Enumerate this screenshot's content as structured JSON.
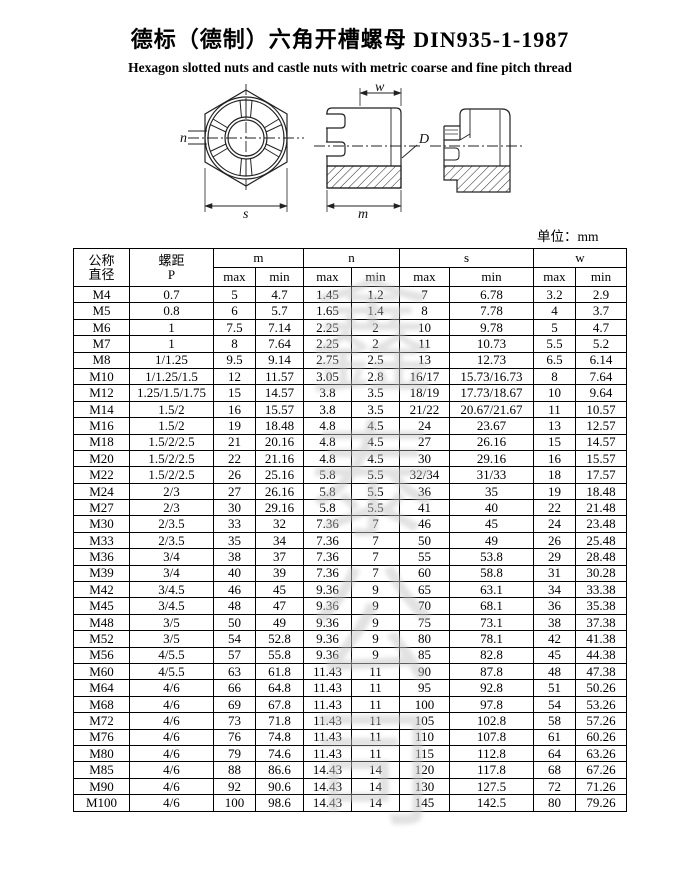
{
  "page": {
    "title": "德标（德制）六角开槽螺母 DIN935-1-1987",
    "subtitle": "Hexagon slotted nuts and castle nuts with metric coarse and fine pitch thread",
    "unit_label": "单位：mm"
  },
  "drawing": {
    "labels": {
      "w": "w",
      "n": "n",
      "D": "D",
      "s": "s",
      "m": "m"
    }
  },
  "watermark": {
    "text": "鑫泰公司"
  },
  "table": {
    "header": {
      "col1_line1": "公称",
      "col1_line2": "直径",
      "col2_line1": "螺距",
      "col2_line2": "P",
      "groups": [
        "m",
        "n",
        "s",
        "w"
      ],
      "max": "max",
      "min": "min"
    },
    "rows": [
      [
        "M4",
        "0.7",
        "5",
        "4.7",
        "1.45",
        "1.2",
        "7",
        "6.78",
        "3.2",
        "2.9"
      ],
      [
        "M5",
        "0.8",
        "6",
        "5.7",
        "1.65",
        "1.4",
        "8",
        "7.78",
        "4",
        "3.7"
      ],
      [
        "M6",
        "1",
        "7.5",
        "7.14",
        "2.25",
        "2",
        "10",
        "9.78",
        "5",
        "4.7"
      ],
      [
        "M7",
        "1",
        "8",
        "7.64",
        "2.25",
        "2",
        "11",
        "10.73",
        "5.5",
        "5.2"
      ],
      [
        "M8",
        "1/1.25",
        "9.5",
        "9.14",
        "2.75",
        "2.5",
        "13",
        "12.73",
        "6.5",
        "6.14"
      ],
      [
        "M10",
        "1/1.25/1.5",
        "12",
        "11.57",
        "3.05",
        "2.8",
        "16/17",
        "15.73/16.73",
        "8",
        "7.64"
      ],
      [
        "M12",
        "1.25/1.5/1.75",
        "15",
        "14.57",
        "3.8",
        "3.5",
        "18/19",
        "17.73/18.67",
        "10",
        "9.64"
      ],
      [
        "M14",
        "1.5/2",
        "16",
        "15.57",
        "3.8",
        "3.5",
        "21/22",
        "20.67/21.67",
        "11",
        "10.57"
      ],
      [
        "M16",
        "1.5/2",
        "19",
        "18.48",
        "4.8",
        "4.5",
        "24",
        "23.67",
        "13",
        "12.57"
      ],
      [
        "M18",
        "1.5/2/2.5",
        "21",
        "20.16",
        "4.8",
        "4.5",
        "27",
        "26.16",
        "15",
        "14.57"
      ],
      [
        "M20",
        "1.5/2/2.5",
        "22",
        "21.16",
        "4.8",
        "4.5",
        "30",
        "29.16",
        "16",
        "15.57"
      ],
      [
        "M22",
        "1.5/2/2.5",
        "26",
        "25.16",
        "5.8",
        "5.5",
        "32/34",
        "31/33",
        "18",
        "17.57"
      ],
      [
        "M24",
        "2/3",
        "27",
        "26.16",
        "5.8",
        "5.5",
        "36",
        "35",
        "19",
        "18.48"
      ],
      [
        "M27",
        "2/3",
        "30",
        "29.16",
        "5.8",
        "5.5",
        "41",
        "40",
        "22",
        "21.48"
      ],
      [
        "M30",
        "2/3.5",
        "33",
        "32",
        "7.36",
        "7",
        "46",
        "45",
        "24",
        "23.48"
      ],
      [
        "M33",
        "2/3.5",
        "35",
        "34",
        "7.36",
        "7",
        "50",
        "49",
        "26",
        "25.48"
      ],
      [
        "M36",
        "3/4",
        "38",
        "37",
        "7.36",
        "7",
        "55",
        "53.8",
        "29",
        "28.48"
      ],
      [
        "M39",
        "3/4",
        "40",
        "39",
        "7.36",
        "7",
        "60",
        "58.8",
        "31",
        "30.28"
      ],
      [
        "M42",
        "3/4.5",
        "46",
        "45",
        "9.36",
        "9",
        "65",
        "63.1",
        "34",
        "33.38"
      ],
      [
        "M45",
        "3/4.5",
        "48",
        "47",
        "9.36",
        "9",
        "70",
        "68.1",
        "36",
        "35.38"
      ],
      [
        "M48",
        "3/5",
        "50",
        "49",
        "9.36",
        "9",
        "75",
        "73.1",
        "38",
        "37.38"
      ],
      [
        "M52",
        "3/5",
        "54",
        "52.8",
        "9.36",
        "9",
        "80",
        "78.1",
        "42",
        "41.38"
      ],
      [
        "M56",
        "4/5.5",
        "57",
        "55.8",
        "9.36",
        "9",
        "85",
        "82.8",
        "45",
        "44.38"
      ],
      [
        "M60",
        "4/5.5",
        "63",
        "61.8",
        "11.43",
        "11",
        "90",
        "87.8",
        "48",
        "47.38"
      ],
      [
        "M64",
        "4/6",
        "66",
        "64.8",
        "11.43",
        "11",
        "95",
        "92.8",
        "51",
        "50.26"
      ],
      [
        "M68",
        "4/6",
        "69",
        "67.8",
        "11.43",
        "11",
        "100",
        "97.8",
        "54",
        "53.26"
      ],
      [
        "M72",
        "4/6",
        "73",
        "71.8",
        "11.43",
        "11",
        "105",
        "102.8",
        "58",
        "57.26"
      ],
      [
        "M76",
        "4/6",
        "76",
        "74.8",
        "11.43",
        "11",
        "110",
        "107.8",
        "61",
        "60.26"
      ],
      [
        "M80",
        "4/6",
        "79",
        "74.6",
        "11.43",
        "11",
        "115",
        "112.8",
        "64",
        "63.26"
      ],
      [
        "M85",
        "4/6",
        "88",
        "86.6",
        "14.43",
        "14",
        "120",
        "117.8",
        "68",
        "67.26"
      ],
      [
        "M90",
        "4/6",
        "92",
        "90.6",
        "14.43",
        "14",
        "130",
        "127.5",
        "72",
        "71.26"
      ],
      [
        "M100",
        "4/6",
        "100",
        "98.6",
        "14.43",
        "14",
        "145",
        "142.5",
        "80",
        "79.26"
      ]
    ]
  }
}
